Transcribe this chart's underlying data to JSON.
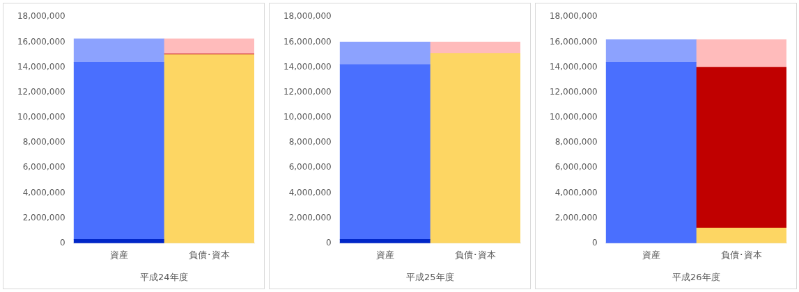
{
  "chart_data": [
    {
      "type": "bar",
      "stacked": true,
      "xlabel": "平成24年度",
      "categories": [
        "資産",
        "負債･資本"
      ],
      "ylim": [
        0,
        18000000
      ],
      "yticks": [
        {
          "value": 0,
          "label": "0"
        },
        {
          "value": 2000000,
          "label": "2,000,000"
        },
        {
          "value": 4000000,
          "label": "4,000,000"
        },
        {
          "value": 6000000,
          "label": "6,000,000"
        },
        {
          "value": 8000000,
          "label": "8,000,000"
        },
        {
          "value": 10000000,
          "label": "10,000,000"
        },
        {
          "value": 12000000,
          "label": "12,000,000"
        },
        {
          "value": 14000000,
          "label": "14,000,000"
        },
        {
          "value": 16000000,
          "label": "16,000,000"
        },
        {
          "value": 18000000,
          "label": "18,000,000"
        }
      ],
      "series": [
        {
          "color": "#0026c8",
          "values": [
            300000,
            null
          ]
        },
        {
          "color": "#4a6ffe",
          "values": [
            14100000,
            null
          ]
        },
        {
          "color": "#8ca2fe",
          "values": [
            1850000,
            null
          ]
        },
        {
          "color": "#fdd663",
          "values": [
            null,
            15000000
          ]
        },
        {
          "color": "#c00000",
          "values": [
            null,
            50000
          ]
        },
        {
          "color": "#ffbbbb",
          "values": [
            null,
            1200000
          ]
        }
      ]
    },
    {
      "type": "bar",
      "stacked": true,
      "xlabel": "平成25年度",
      "categories": [
        "資産",
        "負債･資本"
      ],
      "ylim": [
        0,
        18000000
      ],
      "yticks": [
        {
          "value": 0,
          "label": "0"
        },
        {
          "value": 2000000,
          "label": "2,000,000"
        },
        {
          "value": 4000000,
          "label": "4,000,000"
        },
        {
          "value": 6000000,
          "label": "6,000,000"
        },
        {
          "value": 8000000,
          "label": "8,000,000"
        },
        {
          "value": 10000000,
          "label": "10,000,000"
        },
        {
          "value": 12000000,
          "label": "12,000,000"
        },
        {
          "value": 14000000,
          "label": "14,000,000"
        },
        {
          "value": 16000000,
          "label": "16,000,000"
        },
        {
          "value": 18000000,
          "label": "18,000,000"
        }
      ],
      "series": [
        {
          "color": "#0026c8",
          "values": [
            300000,
            null
          ]
        },
        {
          "color": "#4a6ffe",
          "values": [
            13900000,
            null
          ]
        },
        {
          "color": "#8ca2fe",
          "values": [
            1800000,
            null
          ]
        },
        {
          "color": "#fdd663",
          "values": [
            null,
            15100000
          ]
        },
        {
          "color": "#ffbbbb",
          "values": [
            null,
            900000
          ]
        }
      ]
    },
    {
      "type": "bar",
      "stacked": true,
      "xlabel": "平成26年度",
      "categories": [
        "資産",
        "負債･資本"
      ],
      "ylim": [
        0,
        18000000
      ],
      "yticks": [
        {
          "value": 0,
          "label": "0"
        },
        {
          "value": 2000000,
          "label": "2,000,000"
        },
        {
          "value": 4000000,
          "label": "4,000,000"
        },
        {
          "value": 6000000,
          "label": "6,000,000"
        },
        {
          "value": 8000000,
          "label": "8,000,000"
        },
        {
          "value": 10000000,
          "label": "10,000,000"
        },
        {
          "value": 12000000,
          "label": "12,000,000"
        },
        {
          "value": 14000000,
          "label": "14,000,000"
        },
        {
          "value": 16000000,
          "label": "16,000,000"
        },
        {
          "value": 18000000,
          "label": "18,000,000"
        }
      ],
      "series": [
        {
          "color": "#4a6ffe",
          "values": [
            14400000,
            null
          ]
        },
        {
          "color": "#8ca2fe",
          "values": [
            1800000,
            null
          ]
        },
        {
          "color": "#fdd663",
          "values": [
            null,
            1200000
          ]
        },
        {
          "color": "#c00000",
          "values": [
            null,
            12800000
          ]
        },
        {
          "color": "#ffbbbb",
          "values": [
            null,
            2200000
          ]
        }
      ]
    }
  ]
}
